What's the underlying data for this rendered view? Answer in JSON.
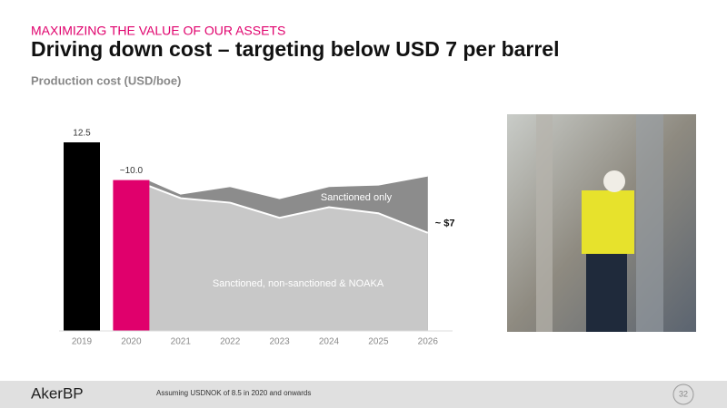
{
  "header": {
    "kicker": "MAXIMIZING THE VALUE OF OUR ASSETS",
    "title": "Driving down cost – targeting below USD 7 per barrel",
    "subtitle": "Production cost (USD/boe)"
  },
  "chart_data": {
    "type": "bar-area",
    "categories": [
      "2019",
      "2020",
      "2021",
      "2022",
      "2023",
      "2024",
      "2025",
      "2026"
    ],
    "bars": {
      "values": [
        12.5,
        10.0,
        null,
        null,
        null,
        null,
        null,
        null
      ],
      "value_labels": [
        "12.5",
        "~10.0",
        null,
        null,
        null,
        null,
        null,
        null
      ],
      "colors": [
        "#000000",
        "#e0006c",
        null,
        null,
        null,
        null,
        null,
        null
      ]
    },
    "series": [
      {
        "name": "Sanctioned only",
        "color": "#8c8c8c",
        "values": [
          null,
          10.0,
          9.1,
          9.6,
          8.8,
          9.6,
          9.7,
          10.3
        ]
      },
      {
        "name": "Sanctioned, non-sanctioned & NOAKA",
        "color": "#c8c8c8",
        "values": [
          null,
          9.6,
          8.8,
          8.5,
          7.5,
          8.2,
          7.8,
          6.5
        ]
      }
    ],
    "annotations": [
      {
        "text": "~ $7"
      }
    ]
  },
  "footer": {
    "logo": "AkerBP",
    "note": "Assuming USDNOK of 8.5 in 2020 and onwards",
    "page": "32"
  }
}
